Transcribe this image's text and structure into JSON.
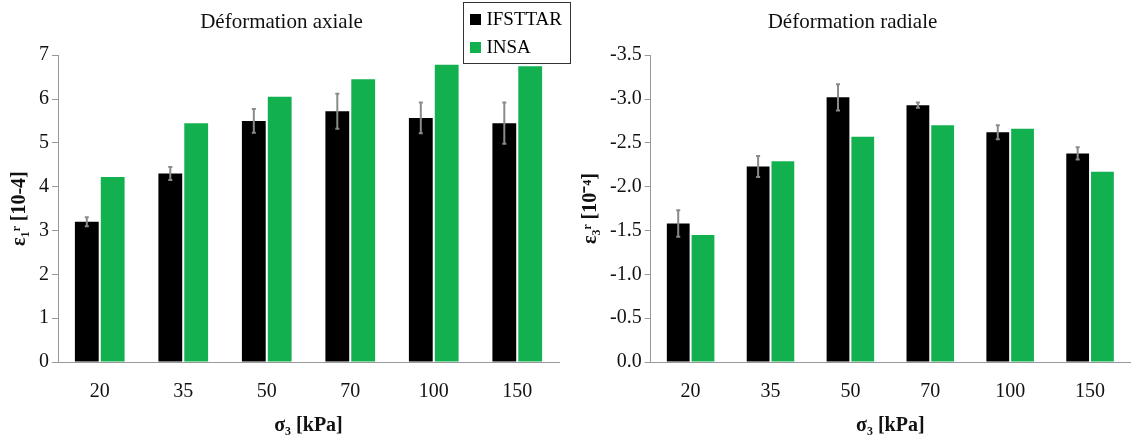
{
  "chart_data": [
    {
      "type": "bar",
      "title": "Déformation axiale",
      "xlabel": "σ₃ [kPa]",
      "ylabel": "ε₁ʳ [10-4]",
      "categories": [
        "20",
        "35",
        "50",
        "70",
        "100",
        "150"
      ],
      "series": [
        {
          "name": "IFSTTAR",
          "color": "#000000",
          "values": [
            3.2,
            4.3,
            5.5,
            5.72,
            5.57,
            5.45
          ],
          "errors": [
            0.1,
            0.15,
            0.27,
            0.4,
            0.35,
            0.47
          ]
        },
        {
          "name": "INSA",
          "color": "#13b050",
          "values": [
            4.22,
            5.45,
            6.05,
            6.45,
            6.78,
            6.75
          ]
        }
      ],
      "ylim": [
        0,
        7
      ],
      "yticks": [
        0,
        1,
        2,
        3,
        4,
        5,
        6,
        7
      ],
      "grid": false,
      "legend": "top right"
    },
    {
      "type": "bar",
      "title": "Déformation radiale",
      "xlabel": "σ₃ [kPa]",
      "ylabel": "ε₃ʳ [10⁻⁴]",
      "categories": [
        "20",
        "35",
        "50",
        "70",
        "100",
        "150"
      ],
      "series": [
        {
          "color": "#000000",
          "values": [
            -1.58,
            -2.23,
            -3.02,
            -2.93,
            -2.62,
            -2.38
          ],
          "errors": [
            0.15,
            0.12,
            0.15,
            0.03,
            0.08,
            0.07
          ]
        },
        {
          "color": "#13b050",
          "values": [
            -1.45,
            -2.29,
            -2.57,
            -2.7,
            -2.66,
            -2.17
          ]
        }
      ],
      "ylim": [
        0,
        -3.5
      ],
      "yticks": [
        {
          "value": 0,
          "label": "0.0"
        },
        {
          "value": -0.5,
          "label": "-0.5"
        },
        {
          "value": -1,
          "label": "-1.0"
        },
        {
          "value": -1.5,
          "label": "-1.5"
        },
        {
          "value": -2,
          "label": "-2.0"
        },
        {
          "value": -2.5,
          "label": "-2.5"
        },
        {
          "value": -3,
          "label": "-3.0"
        },
        {
          "value": -3.5,
          "label": "-3.5"
        }
      ],
      "grid": false,
      "legend": false
    }
  ]
}
